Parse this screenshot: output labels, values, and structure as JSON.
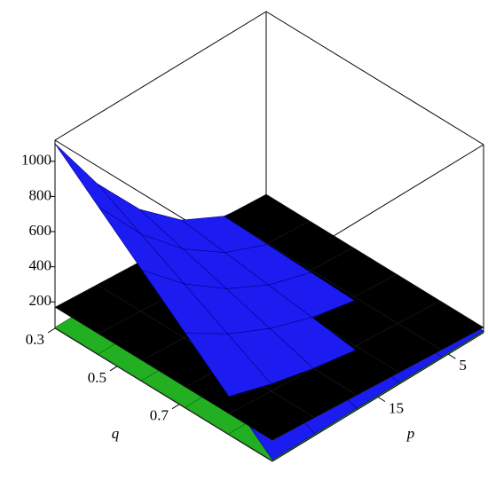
{
  "chart_data": {
    "type": "surface3d",
    "x_label": "q",
    "y_label": "p",
    "x": [
      0.3,
      0.44,
      0.58,
      0.72,
      0.86,
      1.0
    ],
    "y": [
      0,
      6,
      12,
      18,
      24,
      30
    ],
    "xlim": [
      0.3,
      1.0
    ],
    "ylim": [
      0,
      30
    ],
    "zlim": [
      50,
      1120
    ],
    "xticks": [
      0.3,
      0.5,
      0.7
    ],
    "yticks": [
      5,
      15
    ],
    "zticks": [
      200,
      400,
      600,
      800,
      1000
    ],
    "series": [
      {
        "color": "#22b022",
        "z": [
          [
            55,
            55,
            55,
            55,
            55,
            55
          ],
          [
            55,
            55,
            55,
            55,
            55,
            55
          ],
          [
            55,
            55,
            55,
            55,
            55,
            55
          ],
          [
            55,
            55,
            55,
            55,
            55,
            55
          ],
          [
            55,
            55,
            55,
            55,
            55,
            55
          ],
          [
            55,
            55,
            55,
            55,
            55,
            55
          ]
        ]
      },
      {
        "color": "#000000",
        "z": [
          [
            80,
            98,
            116,
            134,
            152,
            170
          ],
          [
            80,
            98,
            116,
            134,
            152,
            170
          ],
          [
            80,
            98,
            116,
            134,
            152,
            170
          ],
          [
            80,
            98,
            116,
            134,
            152,
            170
          ],
          [
            80,
            98,
            116,
            134,
            152,
            170
          ],
          [
            80,
            98,
            116,
            134,
            152,
            170
          ]
        ]
      },
      {
        "color": "#1c1cf0",
        "z": [
          [
            60,
            102,
            226,
            434,
            726,
            1100
          ],
          [
            60,
            93,
            193,
            360,
            592,
            892
          ],
          [
            60,
            85,
            160,
            285,
            459,
            684
          ],
          [
            60,
            77,
            127,
            210,
            326,
            476
          ],
          [
            60,
            68,
            93,
            135,
            193,
            268
          ],
          [
            60,
            60,
            60,
            60,
            60,
            60
          ]
        ]
      }
    ]
  }
}
